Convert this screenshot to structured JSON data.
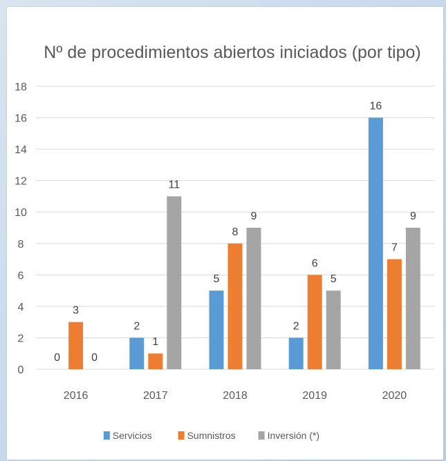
{
  "chart_data": {
    "type": "bar",
    "title": "Nº de procedimientos abiertos iniciados (por tipo)",
    "xlabel": "",
    "ylabel": "",
    "categories": [
      "2016",
      "2017",
      "2018",
      "2019",
      "2020"
    ],
    "ylim": [
      0,
      18
    ],
    "yticks": [
      0,
      2,
      4,
      6,
      8,
      10,
      12,
      14,
      16,
      18
    ],
    "grid": true,
    "legend_position": "bottom",
    "series": [
      {
        "name": "Servicios",
        "color": "#5b9bd5",
        "values": [
          0,
          2,
          5,
          2,
          16
        ]
      },
      {
        "name": "Sumnistros",
        "color": "#ed7d31",
        "values": [
          3,
          1,
          8,
          6,
          7
        ]
      },
      {
        "name": "Inversión (*)",
        "color": "#a5a5a5",
        "values": [
          0,
          11,
          9,
          5,
          9
        ]
      }
    ]
  }
}
